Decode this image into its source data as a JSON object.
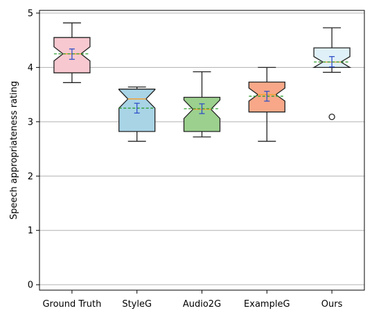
{
  "chart_data": {
    "type": "boxplot",
    "title": "",
    "xlabel": "",
    "ylabel": "Speech appropriateness rating",
    "ylim": [
      -0.1,
      5.05
    ],
    "yticks": [
      0,
      1,
      2,
      3,
      4,
      5
    ],
    "grid": "horizontal",
    "notched": true,
    "shows_mean_line": true,
    "shows_mean_error_bars": true,
    "categories": [
      "Ground Truth",
      "StyleG",
      "Audio2G",
      "ExampleG",
      "Ours"
    ],
    "boxes": [
      {
        "category": "Ground Truth",
        "whisker_low": 3.72,
        "q1": 3.9,
        "median": 4.25,
        "q3": 4.55,
        "whisker_high": 4.82,
        "notch_low": 4.12,
        "notch_high": 4.38,
        "mean": 4.25,
        "mean_ci_low": 4.15,
        "mean_ci_high": 4.34,
        "outliers": [],
        "color": "#f8c8d0"
      },
      {
        "category": "StyleG",
        "whisker_low": 2.64,
        "q1": 2.82,
        "median": 3.42,
        "q3": 3.6,
        "whisker_high": 3.64,
        "notch_low": 3.25,
        "notch_high": 3.59,
        "mean": 3.25,
        "mean_ci_low": 3.16,
        "mean_ci_high": 3.34,
        "outliers": [],
        "color": "#a8d4e6"
      },
      {
        "category": "Audio2G",
        "whisker_low": 2.72,
        "q1": 2.82,
        "median": 3.23,
        "q3": 3.45,
        "whisker_high": 3.92,
        "notch_low": 3.06,
        "notch_high": 3.4,
        "mean": 3.24,
        "mean_ci_low": 3.15,
        "mean_ci_high": 3.33,
        "outliers": [],
        "color": "#9cd08e"
      },
      {
        "category": "ExampleG",
        "whisker_low": 2.64,
        "q1": 3.18,
        "median": 3.5,
        "q3": 3.73,
        "whisker_high": 4.0,
        "notch_low": 3.38,
        "notch_high": 3.62,
        "mean": 3.47,
        "mean_ci_low": 3.38,
        "mean_ci_high": 3.56,
        "outliers": [],
        "color": "#f8a888"
      },
      {
        "category": "Ours",
        "whisker_low": 3.91,
        "q1": 4.0,
        "median": 4.1,
        "q3": 4.36,
        "whisker_high": 4.73,
        "notch_low": 4.0,
        "notch_high": 4.2,
        "mean": 4.1,
        "mean_ci_low": 4.01,
        "mean_ci_high": 4.2,
        "outliers": [
          3.09
        ],
        "color": "#e0f0f8"
      }
    ],
    "style_colors": {
      "box_edge": "#222222",
      "median_line": "#f5a030",
      "mean_line": "#2e9e2e",
      "mean_errorbar": "#3050c8",
      "grid": "#b0b0b0",
      "axes": "#000000"
    }
  }
}
